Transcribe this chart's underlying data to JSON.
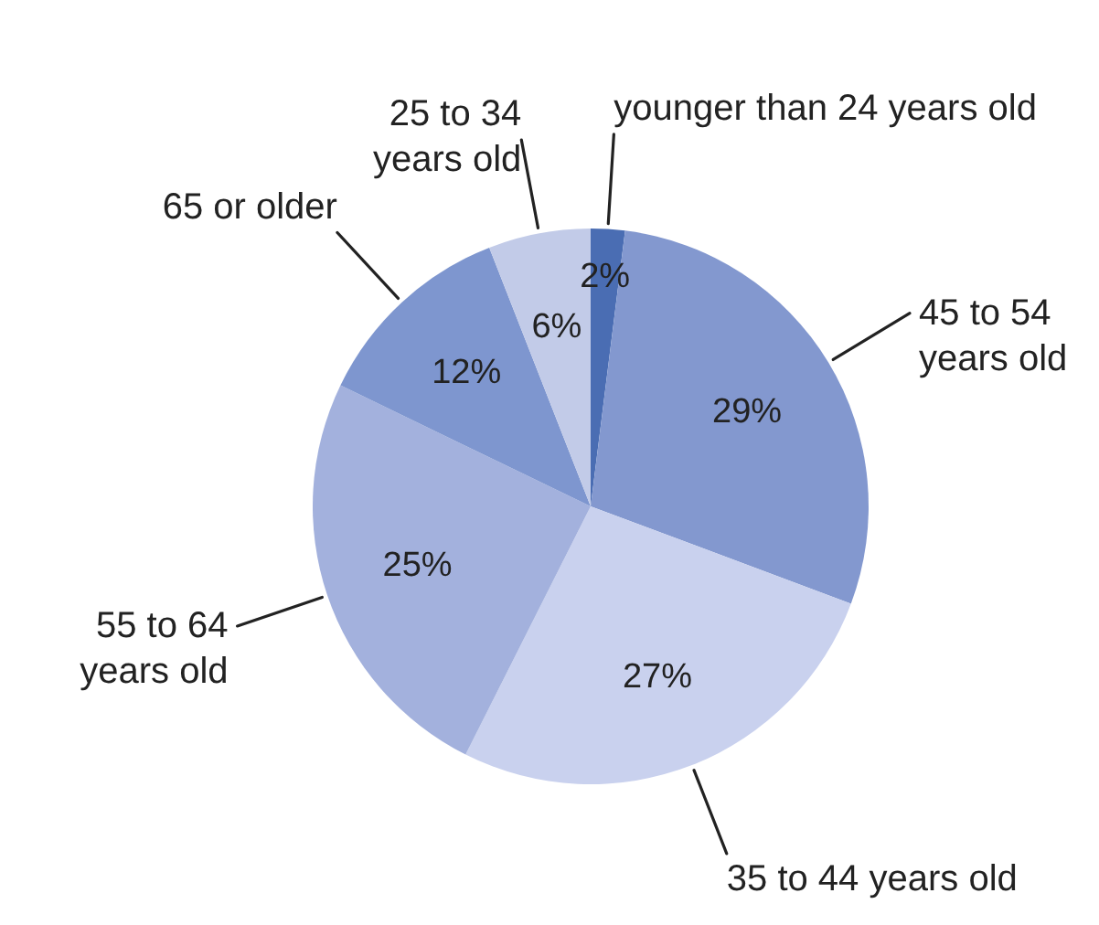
{
  "chart_data": {
    "type": "pie",
    "categories": [
      "younger than 24 years old",
      "45 to 54 years old",
      "35 to 44 years old",
      "55 to 64 years old",
      "65 or older",
      "25 to 34 years old"
    ],
    "values": [
      2,
      29,
      27,
      25,
      12,
      6
    ],
    "colors": [
      "#4a6db3",
      "#8398cf",
      "#c9d1ee",
      "#a3b1dd",
      "#7e96cf",
      "#c2cbe8"
    ],
    "value_labels": [
      "2%",
      "29%",
      "27%",
      "25%",
      "12%",
      "6%"
    ]
  }
}
